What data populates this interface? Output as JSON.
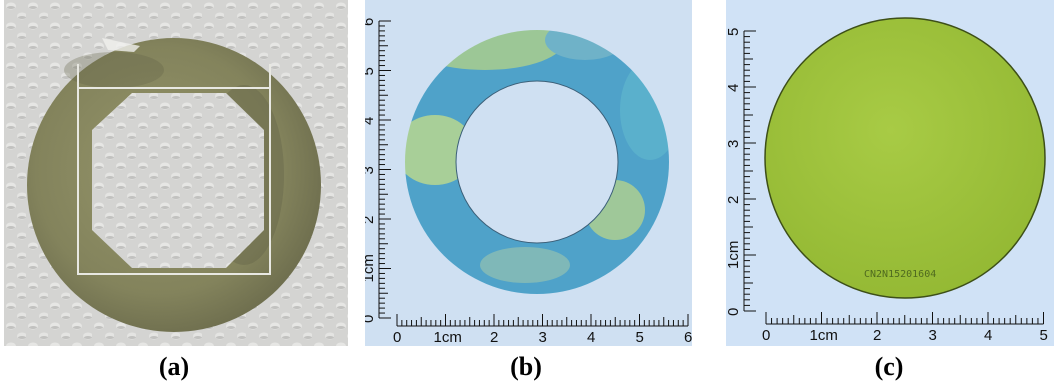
{
  "panels": [
    {
      "caption": "(a)",
      "photo": "octagonal-cut-film-on-white-textured-surface",
      "colors": {
        "background": "#d5d5d3",
        "film": "#8c8c62",
        "film_dark": "#5f5f45"
      }
    },
    {
      "caption": "(b)",
      "photo": "annular-ring-film-on-blue-background",
      "ruler": {
        "unit_label": "1cm",
        "x_labels": [
          "0",
          "1cm",
          "2",
          "3",
          "4",
          "5",
          "6"
        ],
        "y_labels": [
          "0",
          "1cm",
          "2",
          "3",
          "4",
          "5",
          "6"
        ]
      },
      "colors": {
        "background": "#cfe0f2",
        "ring": "#4fa2c9",
        "ring_patch": "#9cc796"
      }
    },
    {
      "caption": "(c)",
      "photo": "full-circular-wafer-film-on-blue-background",
      "serial_text": "CN2N15201604",
      "ruler": {
        "unit_label": "1cm",
        "x_labels": [
          "0",
          "1cm",
          "2",
          "3",
          "4",
          "5"
        ],
        "y_labels": [
          "0",
          "1cm",
          "2",
          "3",
          "4",
          "5"
        ]
      },
      "colors": {
        "background": "#d0e2f6",
        "disc": "#9ec23a",
        "disc_edge": "#3d4f18"
      }
    }
  ]
}
